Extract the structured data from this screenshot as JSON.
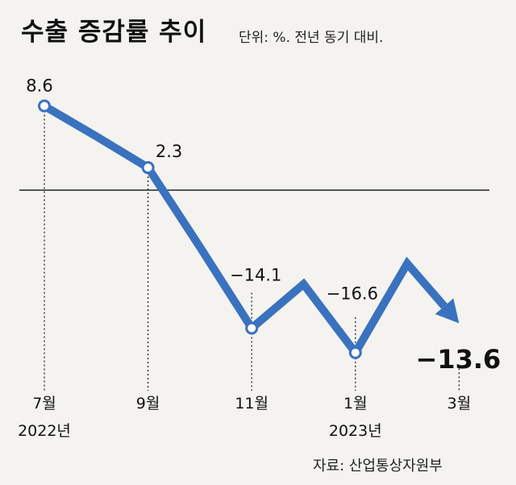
{
  "title": "수출 증감률 추이",
  "unit_label": "단위: %. 전년 동기 대비.",
  "source_label": "자료: 산업통상자원부",
  "colors": {
    "line": "#3a72bf",
    "marker_fill": "#ffffff",
    "axis": "#222222",
    "text": "#111111",
    "background": "#f4f3ef"
  },
  "chart_data": {
    "type": "line",
    "x": [
      "2022-07",
      "2022-08",
      "2022-09",
      "2022-10",
      "2022-11",
      "2022-12",
      "2023-01",
      "2023-02",
      "2023-03"
    ],
    "series": [
      {
        "values": [
          8.6,
          5.5,
          2.3,
          -5.8,
          -14.1,
          -9.6,
          -16.6,
          -7.5,
          -13.6
        ]
      }
    ],
    "labeled_points": [
      {
        "x": "2022-07",
        "label": "8.6",
        "marker": true
      },
      {
        "x": "2022-09",
        "label": "2.3",
        "marker": true
      },
      {
        "x": "2022-11",
        "label": "−14.1",
        "marker": true
      },
      {
        "x": "2023-01",
        "label": "−16.6",
        "marker": true
      },
      {
        "x": "2023-03",
        "label": "−13.6",
        "marker": false,
        "arrow": true
      }
    ],
    "x_ticks": [
      {
        "x": "2022-07",
        "month": "7월",
        "year": "2022년"
      },
      {
        "x": "2022-09",
        "month": "9월",
        "year": ""
      },
      {
        "x": "2022-11",
        "month": "11월",
        "year": ""
      },
      {
        "x": "2023-01",
        "month": "1월",
        "year": "2023년"
      },
      {
        "x": "2023-03",
        "month": "3월",
        "year": ""
      }
    ],
    "zero_line": true,
    "grid": false,
    "ylim": [
      -22,
      14
    ]
  }
}
